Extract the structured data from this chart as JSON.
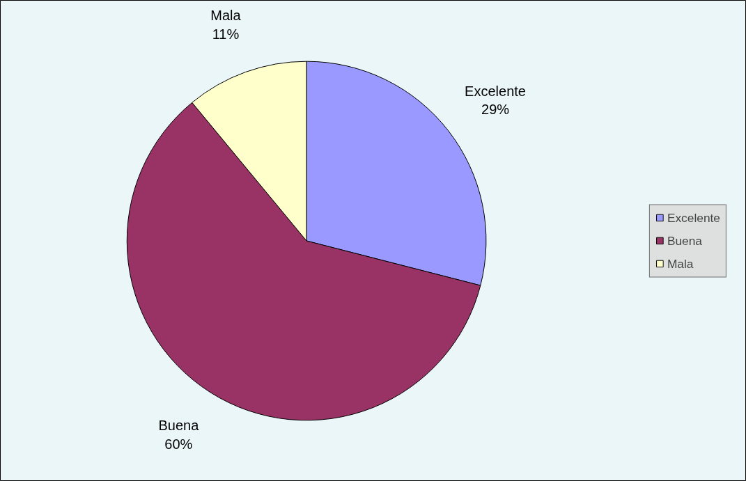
{
  "chart_data": {
    "type": "pie",
    "categories": [
      "Excelente",
      "Buena",
      "Mala"
    ],
    "values": [
      29,
      60,
      11
    ],
    "colors": [
      "#9999ff",
      "#993366",
      "#ffffcc"
    ],
    "value_labels": [
      "29%",
      "60%",
      "11%"
    ],
    "legend": "right"
  }
}
